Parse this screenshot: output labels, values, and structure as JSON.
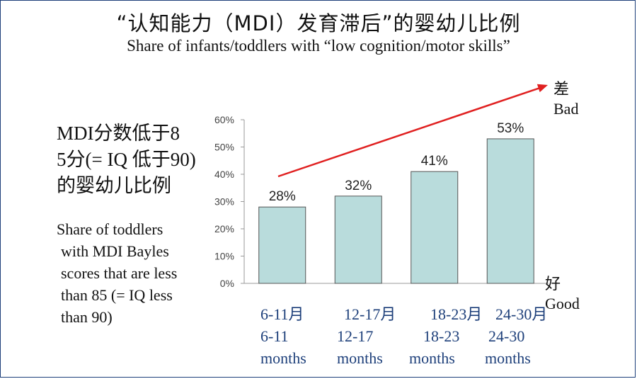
{
  "title_cn": "“认知能力（MDI）发育滞后”的婴幼儿比例",
  "title_en": "Share of infants/toddlers with “low cognition/motor skills”",
  "description_cn": [
    "MDI分数低于8",
    "5分(= IQ 低于90)",
    "的婴幼儿比例"
  ],
  "description_en": [
    "Share of toddlers",
    "with MDI Bayles",
    "scores that are less",
    "than 85 (= IQ less",
    "than 90)"
  ],
  "trend": {
    "bad_cn": "差",
    "bad_en": "Bad",
    "good_cn": "好",
    "good_en": "Good",
    "arrow_color": "#e02020"
  },
  "chart_data": {
    "type": "bar",
    "categories": [
      {
        "cn": "6-11月",
        "en_range": "6-11",
        "en_unit": "months"
      },
      {
        "cn": "12-17月",
        "en_range": "12-17",
        "en_unit": "months"
      },
      {
        "cn": "18-23月",
        "en_range": "18-23",
        "en_unit": "months"
      },
      {
        "cn": "24-30月",
        "en_range": "24-30",
        "en_unit": "months"
      }
    ],
    "values": [
      28,
      32,
      41,
      53
    ],
    "data_labels": [
      "28%",
      "32%",
      "41%",
      "53%"
    ],
    "ylim": [
      0,
      60
    ],
    "yticks": [
      0,
      10,
      20,
      30,
      40,
      50,
      60
    ],
    "ytick_labels": [
      "0%",
      "10%",
      "20%",
      "30%",
      "40%",
      "50%",
      "60%"
    ],
    "grid": false,
    "bar_color": "#b9dcdc",
    "bar_edge_color": "#555555"
  }
}
